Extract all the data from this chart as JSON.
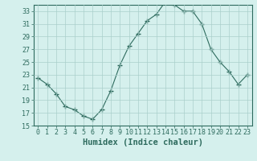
{
  "x": [
    0,
    1,
    2,
    3,
    4,
    5,
    6,
    7,
    8,
    9,
    10,
    11,
    12,
    13,
    14,
    15,
    16,
    17,
    18,
    19,
    20,
    21,
    22,
    23
  ],
  "y": [
    22.5,
    21.5,
    20.0,
    18.0,
    17.5,
    16.5,
    16.0,
    17.5,
    20.5,
    24.5,
    27.5,
    29.5,
    31.5,
    32.5,
    34.5,
    34.0,
    33.0,
    33.0,
    31.0,
    27.0,
    25.0,
    23.5,
    21.5,
    23.0
  ],
  "line_color": "#2e6b5e",
  "marker": "+",
  "marker_size": 4,
  "bg_color": "#d5f0ed",
  "grid_color": "#aacfcb",
  "xlabel": "Humidex (Indice chaleur)",
  "ylim": [
    15,
    34
  ],
  "xlim": [
    -0.5,
    23.5
  ],
  "yticks": [
    15,
    17,
    19,
    21,
    23,
    25,
    27,
    29,
    31,
    33
  ],
  "xticks": [
    0,
    1,
    2,
    3,
    4,
    5,
    6,
    7,
    8,
    9,
    10,
    11,
    12,
    13,
    14,
    15,
    16,
    17,
    18,
    19,
    20,
    21,
    22,
    23
  ],
  "label_fontsize": 7.5,
  "tick_fontsize": 6.0
}
